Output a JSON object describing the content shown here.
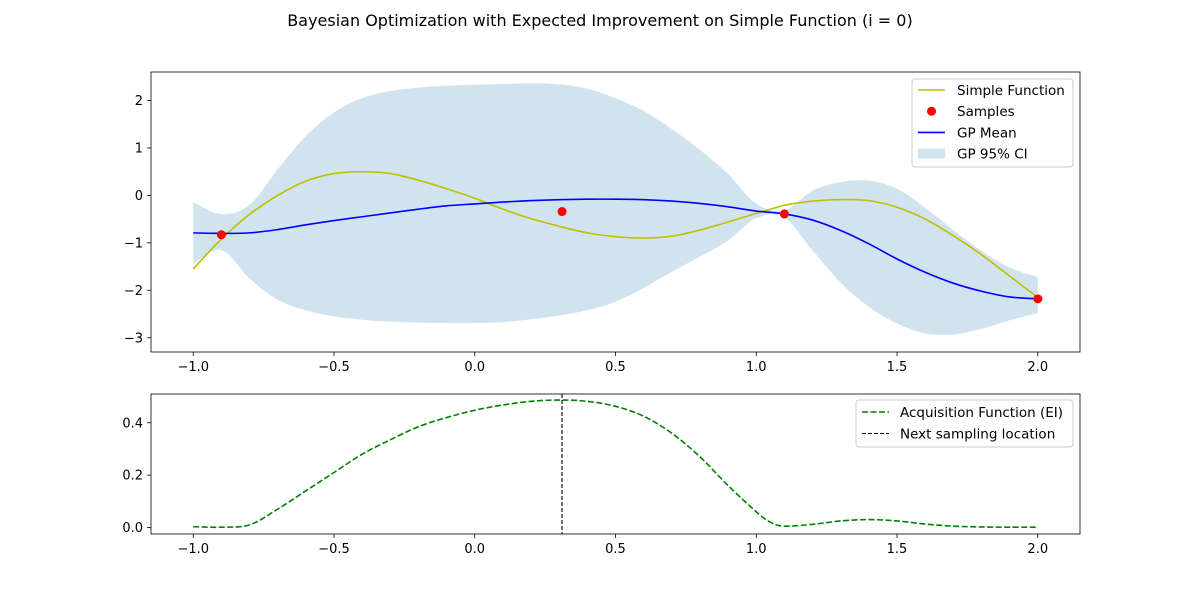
{
  "figure": {
    "title": "Bayesian Optimization with Expected Improvement on Simple Function (i = 0)"
  },
  "chart_data": [
    {
      "type": "line",
      "panel": "top",
      "xlim": [
        -1.15,
        2.15
      ],
      "ylim": [
        -3.3,
        2.6
      ],
      "xticks": [
        -1.0,
        -0.5,
        0.0,
        0.5,
        1.0,
        1.5,
        2.0
      ],
      "xtick_labels": [
        "−1.0",
        "−0.5",
        "0.0",
        "0.5",
        "1.0",
        "1.5",
        "2.0"
      ],
      "yticks": [
        -3,
        -2,
        -1,
        0,
        1,
        2
      ],
      "ytick_labels": [
        "−3",
        "−2",
        "−1",
        "0",
        "1",
        "2"
      ],
      "grid": false,
      "legend_position": "top-right",
      "colors": {
        "function": "#bfbf00",
        "samples": "#ff0000",
        "mean": "#0000ff",
        "ci": "#d1e3ef"
      },
      "legend": {
        "function": "Simple Function",
        "samples": "Samples",
        "mean": "GP Mean",
        "ci": "GP 95% CI"
      },
      "x": [
        -1.0,
        -0.9,
        -0.8,
        -0.7,
        -0.6,
        -0.5,
        -0.4,
        -0.3,
        -0.2,
        -0.1,
        0.0,
        0.1,
        0.2,
        0.3,
        0.4,
        0.5,
        0.6,
        0.7,
        0.8,
        0.9,
        1.0,
        1.1,
        1.2,
        1.3,
        1.4,
        1.5,
        1.6,
        1.7,
        1.8,
        1.9,
        2.0
      ],
      "function_y": [
        -1.55,
        -0.92,
        -0.4,
        0.0,
        0.3,
        0.46,
        0.5,
        0.46,
        0.32,
        0.14,
        -0.06,
        -0.29,
        -0.49,
        -0.65,
        -0.79,
        -0.87,
        -0.9,
        -0.86,
        -0.73,
        -0.56,
        -0.38,
        -0.21,
        -0.12,
        -0.09,
        -0.11,
        -0.25,
        -0.5,
        -0.85,
        -1.25,
        -1.7,
        -2.15
      ],
      "mean_y": [
        -0.79,
        -0.8,
        -0.79,
        -0.72,
        -0.62,
        -0.53,
        -0.45,
        -0.37,
        -0.29,
        -0.22,
        -0.18,
        -0.14,
        -0.11,
        -0.09,
        -0.08,
        -0.08,
        -0.09,
        -0.12,
        -0.17,
        -0.24,
        -0.33,
        -0.39,
        -0.52,
        -0.74,
        -1.02,
        -1.34,
        -1.62,
        -1.85,
        -2.02,
        -2.14,
        -2.18
      ],
      "ci_upper": [
        -0.14,
        -0.4,
        -0.2,
        0.55,
        1.25,
        1.75,
        2.05,
        2.2,
        2.27,
        2.31,
        2.33,
        2.35,
        2.36,
        2.34,
        2.25,
        2.05,
        1.78,
        1.4,
        0.96,
        0.45,
        -0.18,
        -0.32,
        0.1,
        0.28,
        0.31,
        0.14,
        -0.26,
        -0.73,
        -1.17,
        -1.52,
        -1.72
      ],
      "ci_lower": [
        -1.44,
        -1.15,
        -1.75,
        -2.2,
        -2.42,
        -2.55,
        -2.62,
        -2.66,
        -2.68,
        -2.69,
        -2.69,
        -2.67,
        -2.61,
        -2.53,
        -2.42,
        -2.24,
        -1.95,
        -1.61,
        -1.29,
        -0.95,
        -0.48,
        -0.47,
        -1.16,
        -1.84,
        -2.35,
        -2.7,
        -2.91,
        -2.93,
        -2.81,
        -2.63,
        -2.48
      ],
      "samples": {
        "x": [
          -0.9,
          0.31,
          1.1,
          2.0
        ],
        "y": [
          -0.83,
          -0.34,
          -0.39,
          -2.18
        ]
      }
    },
    {
      "type": "line",
      "panel": "bottom",
      "xlim": [
        -1.15,
        2.15
      ],
      "ylim": [
        -0.025,
        0.51
      ],
      "xticks": [
        -1.0,
        -0.5,
        0.0,
        0.5,
        1.0,
        1.5,
        2.0
      ],
      "xtick_labels": [
        "−1.0",
        "−0.5",
        "0.0",
        "0.5",
        "1.0",
        "1.5",
        "2.0"
      ],
      "yticks": [
        0.0,
        0.2,
        0.4
      ],
      "ytick_labels": [
        "0.0",
        "0.2",
        "0.4"
      ],
      "grid": false,
      "legend_position": "top-right",
      "colors": {
        "ei": "#008000",
        "next": "#000000"
      },
      "legend": {
        "ei": "Acquisition Function (EI)",
        "next": "Next sampling location"
      },
      "x": [
        -1.0,
        -0.9,
        -0.8,
        -0.7,
        -0.6,
        -0.5,
        -0.4,
        -0.3,
        -0.2,
        -0.1,
        0.0,
        0.1,
        0.2,
        0.3,
        0.4,
        0.5,
        0.6,
        0.7,
        0.8,
        0.9,
        1.0,
        1.05,
        1.1,
        1.2,
        1.3,
        1.4,
        1.5,
        1.6,
        1.7,
        1.8,
        1.9,
        2.0
      ],
      "ei_y": [
        0.003,
        0.001,
        0.01,
        0.07,
        0.14,
        0.21,
        0.28,
        0.335,
        0.385,
        0.42,
        0.448,
        0.468,
        0.482,
        0.487,
        0.482,
        0.463,
        0.425,
        0.36,
        0.27,
        0.16,
        0.06,
        0.02,
        0.005,
        0.012,
        0.025,
        0.03,
        0.025,
        0.013,
        0.005,
        0.002,
        0.001,
        0.001
      ],
      "next_x": 0.31
    }
  ]
}
